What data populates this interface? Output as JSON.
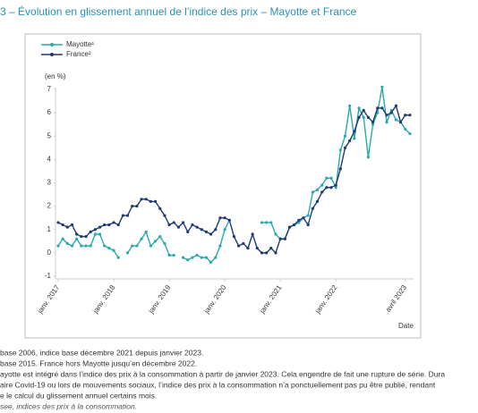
{
  "chart_data": {
    "type": "line",
    "title": "3 – Évolution en glissement annuel de l’indice des prix – Mayotte et France",
    "y_label": "(en %)",
    "x_label": "Date",
    "categories": [
      "janv. 2017",
      null,
      null,
      null,
      null,
      null,
      null,
      null,
      null,
      null,
      null,
      null,
      "janv. 2018",
      null,
      null,
      null,
      null,
      null,
      null,
      null,
      null,
      null,
      null,
      null,
      "janv. 2019",
      null,
      null,
      null,
      null,
      null,
      null,
      null,
      null,
      null,
      null,
      null,
      "janv. 2020",
      null,
      null,
      null,
      null,
      null,
      null,
      null,
      null,
      null,
      null,
      null,
      "janv. 2021",
      null,
      null,
      null,
      null,
      null,
      null,
      null,
      null,
      null,
      null,
      null,
      "janv. 2022",
      null,
      null,
      null,
      null,
      null,
      null,
      null,
      null,
      null,
      null,
      null,
      null,
      null,
      null,
      "avril 2023",
      null
    ],
    "series": [
      {
        "name": "Mayotte¹",
        "color": "#2aa9ad",
        "values": [
          0.3,
          0.6,
          0.4,
          0.3,
          0.6,
          0.3,
          0.3,
          0.3,
          0.8,
          0.8,
          0.3,
          0.2,
          0.1,
          -0.2,
          null,
          0.0,
          0.3,
          0.3,
          0.6,
          0.9,
          0.3,
          0.5,
          0.7,
          0.4,
          -0.1,
          -0.1,
          null,
          -0.2,
          -0.3,
          -0.2,
          -0.1,
          -0.2,
          -0.2,
          -0.4,
          -0.2,
          0.3,
          1.0,
          1.4,
          null,
          null,
          null,
          null,
          null,
          null,
          1.3,
          1.3,
          1.3,
          0.8,
          0.6,
          0.6,
          1.1,
          1.2,
          1.3,
          1.5,
          1.6,
          2.6,
          2.7,
          2.9,
          3.2,
          3.2,
          2.8,
          4.4,
          5.0,
          6.3,
          4.9,
          6.2,
          5.8,
          4.1,
          5.5,
          6.0,
          7.1,
          5.6,
          6.1,
          5.7,
          5.6,
          5.3,
          5.1
        ]
      },
      {
        "name": "France²",
        "color": "#1f3a6e",
        "values": [
          1.3,
          1.2,
          1.1,
          1.2,
          0.8,
          0.7,
          0.7,
          0.9,
          1.0,
          1.1,
          1.2,
          1.2,
          1.3,
          1.2,
          1.6,
          1.6,
          2.0,
          2.0,
          2.3,
          2.3,
          2.2,
          2.2,
          1.9,
          1.6,
          1.2,
          1.3,
          1.1,
          1.3,
          0.9,
          1.2,
          1.1,
          1.0,
          0.9,
          0.8,
          1.0,
          1.5,
          1.5,
          1.4,
          0.7,
          0.3,
          0.4,
          0.2,
          0.8,
          0.2,
          0.0,
          0.0,
          0.2,
          0.0,
          0.6,
          0.6,
          1.1,
          1.2,
          1.4,
          1.5,
          1.2,
          1.9,
          2.2,
          2.6,
          2.8,
          2.8,
          2.9,
          3.6,
          4.5,
          4.8,
          5.2,
          5.8,
          6.1,
          5.8,
          5.6,
          6.2,
          6.2,
          5.9,
          6.0,
          6.3,
          5.6,
          5.9,
          5.9
        ]
      }
    ],
    "ylim": [
      -1,
      7
    ],
    "yticks": [
      -1,
      0,
      1,
      2,
      3,
      4,
      5,
      6,
      7
    ],
    "legend": "top-left",
    "notes": [
      "base 2006, indice base décembre 2021 depuis janvier 2023.",
      "base 2015. France hors Mayotte jusqu’en décembre 2022.",
      "ayotte est intégré dans l’indice des prix à la consommation à partir de janvier 2023. Cela engendre de fait une rupture de série. Dura",
      "aire Covid-19 ou lors de mouvements sociaux, l’indice des prix à la consommation n’a ponctuellement pas pu être publié, rendant",
      "e le calcul du glissement annuel certains mois."
    ],
    "source": "see, indices des prix à la consommation."
  }
}
